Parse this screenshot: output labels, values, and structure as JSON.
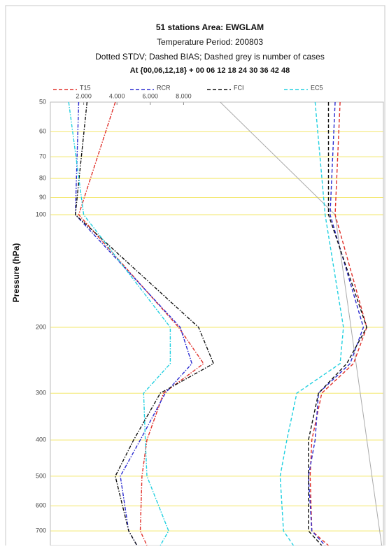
{
  "chart_data": {
    "type": "profile",
    "title": [
      "51 stations Area: EWGLAM",
      "Temperature  Period: 200803",
      "Dotted STDV; Dashed BIAS; Dashed grey is number of cases",
      "At {00,06,12,18} + 00 06 12 18 24 30 36 42 48"
    ],
    "y_label": "Pressure (hPa)",
    "ylog": true,
    "ylim": [
      50,
      766
    ],
    "yticks": [
      50,
      60,
      70,
      80,
      90,
      100,
      200,
      300,
      400,
      500,
      600,
      700
    ],
    "xlim": [
      0,
      20
    ],
    "xticks": [
      {
        "value": 2,
        "label": "2.000"
      },
      {
        "value": 4,
        "label": "4.000"
      },
      {
        "value": 6,
        "label": "6.000"
      },
      {
        "value": 8,
        "label": "8.000"
      }
    ],
    "grid": true,
    "levels": [
      50,
      100,
      200,
      250,
      300,
      400,
      500,
      700,
      766
    ],
    "series": [
      {
        "name": "T15",
        "color": "#e0302a",
        "stdv": [
          3.9,
          1.7,
          7.7,
          9.2,
          6.8,
          5.8,
          5.5,
          5.4,
          5.8
        ],
        "bias": [
          17.4,
          17.1,
          19.0,
          18.2,
          16.3,
          15.7,
          15.6,
          15.7,
          16.7
        ]
      },
      {
        "name": "RCR",
        "color": "#2a2ad0",
        "stdv": [
          1.7,
          1.5,
          7.8,
          8.5,
          6.9,
          5.4,
          4.2,
          4.7,
          5.2
        ],
        "bias": [
          17.1,
          16.8,
          18.8,
          18.0,
          16.1,
          15.9,
          15.5,
          15.7,
          16.5
        ]
      },
      {
        "name": "FCI",
        "color": "#111111",
        "stdv": [
          2.2,
          1.5,
          8.9,
          9.8,
          6.6,
          5.0,
          3.9,
          4.7,
          5.2
        ],
        "bias": [
          16.7,
          16.7,
          19.0,
          17.8,
          16.1,
          15.5,
          15.5,
          15.5,
          16.3
        ]
      },
      {
        "name": "EC5",
        "color": "#22d0e0",
        "stdv": [
          1.1,
          2.0,
          7.2,
          7.2,
          5.6,
          5.7,
          5.8,
          7.1,
          6.6
        ],
        "bias": [
          15.9,
          16.5,
          17.6,
          17.4,
          14.8,
          14.2,
          13.8,
          14.0,
          14.6
        ]
      }
    ],
    "cases": {
      "color": "#aaaaaa",
      "levels": [
        50,
        100,
        766
      ],
      "values": [
        10.2,
        17.1,
        19.9
      ]
    }
  }
}
